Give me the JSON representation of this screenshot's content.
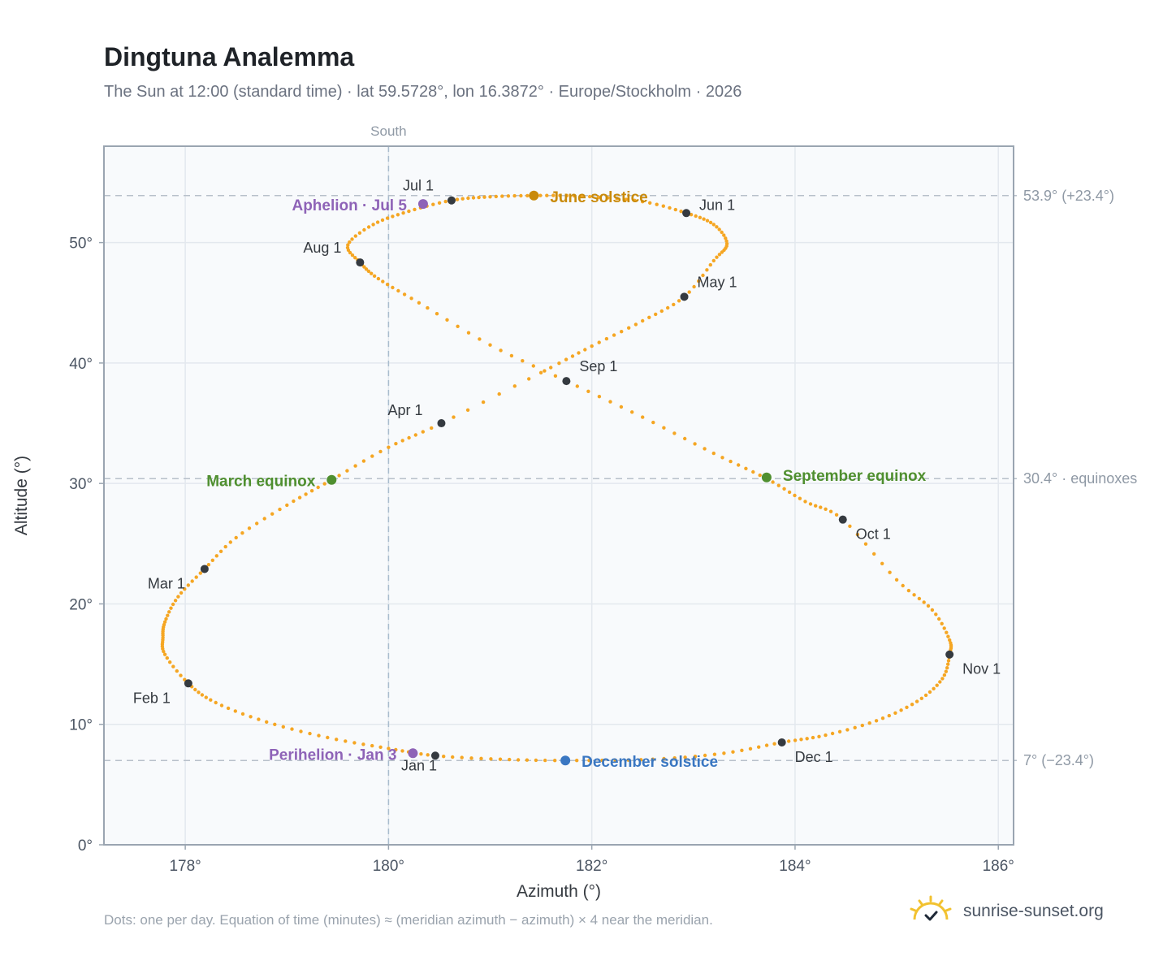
{
  "header": {
    "title": "Dingtuna Analemma",
    "subtitle": "The Sun at 12:00 (standard time) · lat 59.5728°, lon 16.3872° · Europe/Stockholm · 2026"
  },
  "footer": {
    "note": "Dots: one per day. Equation of time (minutes) ≈ (meridian azimuth − azimuth) × 4 near the meridian.",
    "brand": "sunrise-sunset.org",
    "brand_icon": "sun-logo-icon"
  },
  "colors": {
    "analemma": "#f5a623",
    "month_marker": "#353a40",
    "solstice_june": "#c98a0a",
    "solstice_december": "#3a77c2",
    "equinox": "#4f8f2f",
    "apsis": "#8e63b7",
    "grid": "#e3e8ee",
    "plot_bg": "#f8fafc",
    "frame": "#9aa5b1",
    "reference_line": "#b7c0ca"
  },
  "chart_data": {
    "type": "scatter",
    "xlabel": "Azimuth (°)",
    "ylabel": "Altitude (°)",
    "xlim": [
      177.2,
      186.15
    ],
    "ylim": [
      0,
      58
    ],
    "x_ticks": [
      178,
      180,
      182,
      184,
      186
    ],
    "x_tick_labels": [
      "178°",
      "180°",
      "182°",
      "184°",
      "186°"
    ],
    "y_ticks": [
      0,
      10,
      20,
      30,
      40,
      50
    ],
    "y_tick_labels": [
      "0°",
      "10°",
      "20°",
      "30°",
      "40°",
      "50°"
    ],
    "grid": true,
    "meridian": {
      "x": 180,
      "label": "South"
    },
    "reference_lines": [
      {
        "y": 53.9,
        "label": "53.9° (+23.4°)"
      },
      {
        "y": 30.4,
        "label": "30.4° · equinoxes"
      },
      {
        "y": 7,
        "label": "7° (−23.4°)"
      }
    ],
    "analemma_path": {
      "description": "one dot per day",
      "points": [
        [
          180.46,
          7.4
        ],
        [
          181.1,
          7.1
        ],
        [
          181.74,
          7.0
        ],
        [
          182.6,
          7.1
        ],
        [
          183.3,
          7.6
        ],
        [
          183.87,
          8.5
        ],
        [
          184.3,
          9.1
        ],
        [
          184.8,
          10.3
        ],
        [
          185.2,
          11.9
        ],
        [
          185.45,
          13.8
        ],
        [
          185.52,
          15.8
        ],
        [
          185.52,
          17.0
        ],
        [
          185.35,
          19.5
        ],
        [
          185.0,
          22.0
        ],
        [
          184.47,
          27.0
        ],
        [
          184.1,
          28.5
        ],
        [
          183.72,
          30.4
        ],
        [
          183.2,
          32.5
        ],
        [
          182.5,
          35.5
        ],
        [
          181.75,
          38.5
        ],
        [
          181.0,
          41.5
        ],
        [
          180.3,
          45.0
        ],
        [
          179.9,
          47.0
        ],
        [
          179.72,
          48.35
        ],
        [
          179.6,
          49.8
        ],
        [
          179.85,
          51.5
        ],
        [
          180.2,
          52.6
        ],
        [
          180.62,
          53.5
        ],
        [
          181.0,
          53.8
        ],
        [
          181.43,
          53.9
        ],
        [
          181.9,
          53.85
        ],
        [
          182.5,
          53.4
        ],
        [
          182.93,
          52.45
        ],
        [
          183.2,
          51.5
        ],
        [
          183.33,
          49.9
        ],
        [
          183.2,
          48.5
        ],
        [
          182.91,
          45.5
        ],
        [
          182.5,
          43.5
        ],
        [
          182.0,
          41.4
        ],
        [
          181.5,
          39.2
        ],
        [
          180.52,
          35.0
        ],
        [
          180.0,
          33.0
        ],
        [
          179.44,
          30.3
        ],
        [
          179.0,
          28.2
        ],
        [
          178.5,
          25.5
        ],
        [
          178.19,
          22.9
        ],
        [
          177.93,
          20.6
        ],
        [
          177.8,
          18.5
        ],
        [
          177.78,
          17.2
        ],
        [
          177.8,
          15.8
        ],
        [
          178.03,
          13.4
        ],
        [
          178.3,
          11.8
        ],
        [
          178.8,
          10.2
        ],
        [
          179.4,
          8.9
        ],
        [
          180.0,
          8.0
        ],
        [
          180.46,
          7.4
        ]
      ]
    },
    "month_markers": [
      {
        "label": "Jan 1",
        "x": 180.46,
        "y": 7.4
      },
      {
        "label": "Feb 1",
        "x": 178.03,
        "y": 13.4
      },
      {
        "label": "Mar 1",
        "x": 178.19,
        "y": 22.9
      },
      {
        "label": "Apr 1",
        "x": 180.52,
        "y": 35.0
      },
      {
        "label": "May 1",
        "x": 182.91,
        "y": 45.5
      },
      {
        "label": "Jun 1",
        "x": 182.93,
        "y": 52.45
      },
      {
        "label": "Jul 1",
        "x": 180.62,
        "y": 53.5
      },
      {
        "label": "Aug 1",
        "x": 179.72,
        "y": 48.35
      },
      {
        "label": "Sep 1",
        "x": 181.75,
        "y": 38.5
      },
      {
        "label": "Oct 1",
        "x": 184.47,
        "y": 27.0
      },
      {
        "label": "Nov 1",
        "x": 185.52,
        "y": 15.8
      },
      {
        "label": "Dec 1",
        "x": 183.87,
        "y": 8.5
      }
    ],
    "events": [
      {
        "label": "June solstice",
        "x": 181.43,
        "y": 53.9,
        "color_key": "solstice_june"
      },
      {
        "label": "December solstice",
        "x": 181.74,
        "y": 7.0,
        "color_key": "solstice_december"
      },
      {
        "label": "March equinox",
        "x": 179.44,
        "y": 30.3,
        "color_key": "equinox"
      },
      {
        "label": "September equinox",
        "x": 183.72,
        "y": 30.5,
        "color_key": "equinox"
      },
      {
        "label": "Aphelion · Jul 5",
        "x": 180.34,
        "y": 53.2,
        "color_key": "apsis"
      },
      {
        "label": "Perihelion · Jan 3",
        "x": 180.24,
        "y": 7.6,
        "color_key": "apsis"
      }
    ]
  }
}
